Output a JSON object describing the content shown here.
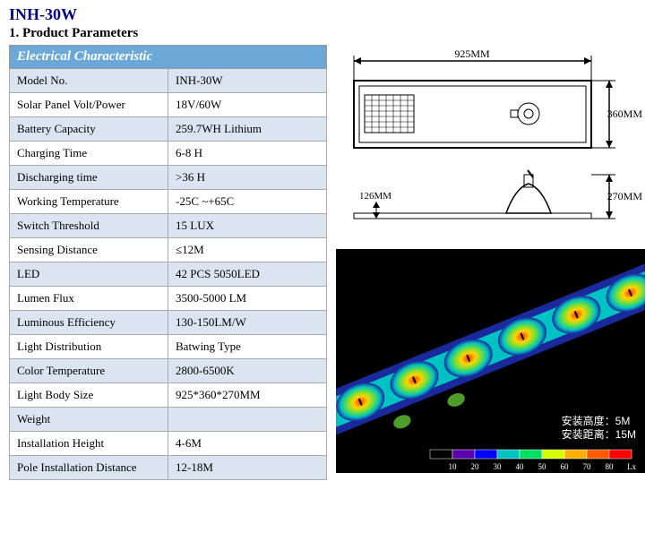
{
  "title": "INH-30W",
  "subtitle": "1. Product Parameters",
  "table": {
    "header": "Electrical Characteristic",
    "header_bg": "#6ba8d8",
    "header_fg": "#ffffff",
    "alt_row_bg": "#dbe5f1",
    "plain_row_bg": "#ffffff",
    "border_color": "#aaaaaa",
    "label_col_width_pct": 50,
    "font_size_pt": 10,
    "header_font_size_pt": 11,
    "rows": [
      {
        "label": "Model No.",
        "value": "INH-30W",
        "alt": true
      },
      {
        "label": "Solar Panel Volt/Power",
        "value": "18V/60W",
        "alt": false
      },
      {
        "label": "Battery Capacity",
        "value": "259.7WH Lithium",
        "alt": true
      },
      {
        "label": "Charging Time",
        "value": "6-8 H",
        "alt": false
      },
      {
        "label": "Discharging time",
        "value": ">36 H",
        "alt": true
      },
      {
        "label": "Working Temperature",
        "value": "-25C ~+65C",
        "alt": false
      },
      {
        "label": "Switch Threshold",
        "value": "15 LUX",
        "alt": true
      },
      {
        "label": "Sensing Distance",
        "value": "≤12M",
        "alt": false
      },
      {
        "label": "LED",
        "value": "42 PCS 5050LED",
        "alt": true
      },
      {
        "label": "Lumen Flux",
        "value": "3500-5000 LM",
        "alt": false
      },
      {
        "label": "Luminous Efficiency",
        "value": "130-150LM/W",
        "alt": true
      },
      {
        "label": "Light Distribution",
        "value": "Batwing Type",
        "alt": false
      },
      {
        "label": "Color Temperature",
        "value": "2800-6500K",
        "alt": true
      },
      {
        "label": "Light Body Size",
        "value": "925*360*270MM",
        "alt": false
      },
      {
        "label": "Weight",
        "value": "",
        "alt": true
      },
      {
        "label": "Installation Height",
        "value": "4-6M",
        "alt": false
      },
      {
        "label": "Pole Installation Distance",
        "value": "12-18M",
        "alt": true
      }
    ]
  },
  "diagram": {
    "width_label": "925MM",
    "height_label_upper": "360MM",
    "depth_label": "126MM",
    "height_label_lower": "270MM",
    "stroke": "#000000",
    "font_size_pt": 10
  },
  "heatmap": {
    "background": "#000000",
    "annotation_line1": "安装高度：5M",
    "annotation_line2": "安装距离：15M",
    "annotation_color": "#ffffff",
    "road_colors": {
      "edge": "#1a2a9c",
      "mid": "#00c2c2",
      "core_outer": "#6fe03a",
      "core_mid": "#ffd400",
      "core_inner": "#ff3300"
    },
    "legend": {
      "ticks": [
        "10",
        "20",
        "30",
        "40",
        "50",
        "60",
        "70",
        "80",
        "Lx"
      ],
      "colors": [
        "#000000",
        "#5a00b0",
        "#0000ff",
        "#00c2c2",
        "#00e060",
        "#d4ff00",
        "#ffb000",
        "#ff5a00",
        "#ff0000"
      ],
      "font_size_pt": 8,
      "tick_color": "#ffffff"
    }
  }
}
